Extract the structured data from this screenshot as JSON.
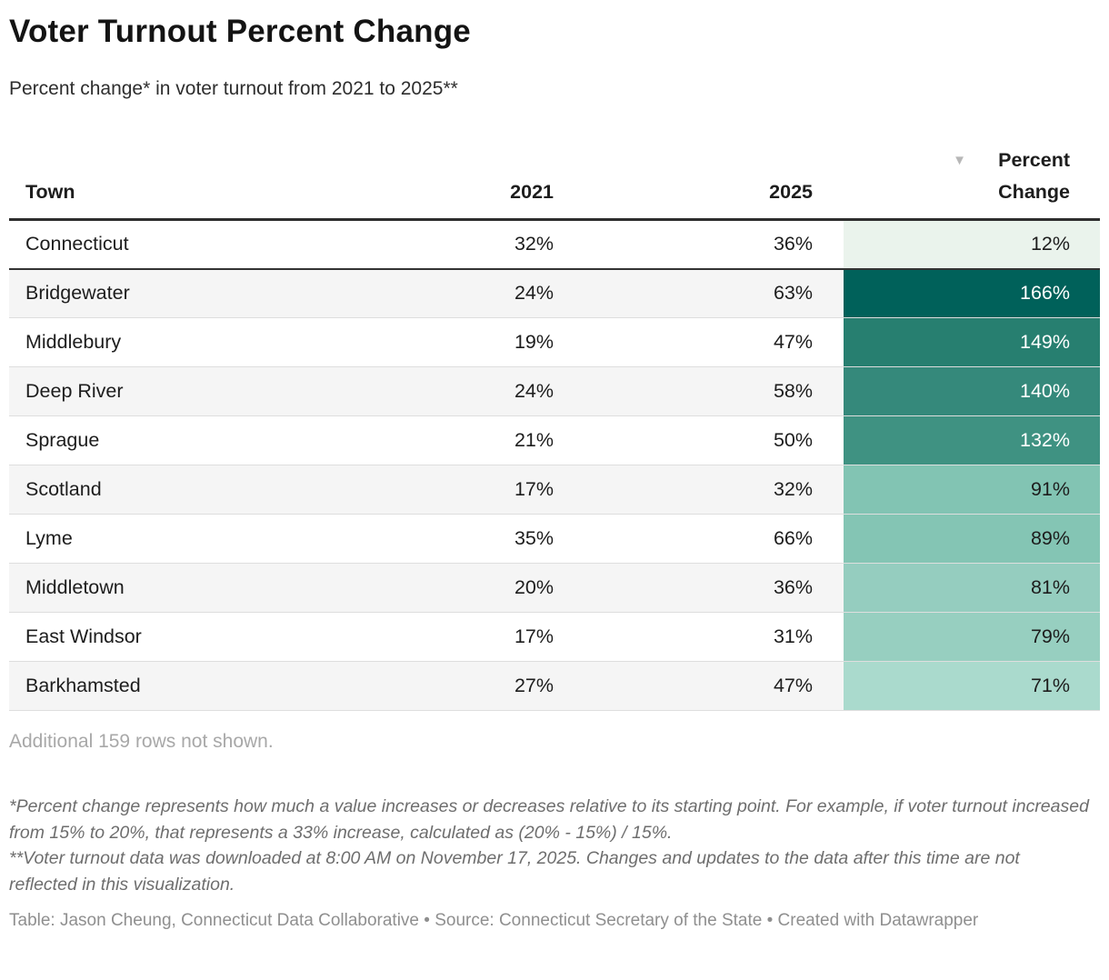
{
  "header": {
    "title": "Voter Turnout Percent Change",
    "subtitle": "Percent change* in voter turnout from 2021 to 2025**"
  },
  "icons": {
    "sort_descending": "▼"
  },
  "chart_data": {
    "type": "table",
    "title": "Voter Turnout Percent Change",
    "subtitle": "Percent change* in voter turnout from 2021 to 2025**",
    "columns": [
      "Town",
      "2021",
      "2025",
      "Percent Change"
    ],
    "sorted_by": "Percent Change",
    "sort_direction": "descending",
    "color_scale": "sequential green (light #eaf3ec low to dark teal #00615a high)",
    "rows": [
      {
        "town": "Connecticut",
        "turnout_2021": "32%",
        "turnout_2025": "36%",
        "percent_change": "12%",
        "change_value": 12,
        "row_bg": "#ffffff",
        "change_cell_bg": "#eaf3ec",
        "change_cell_text": "#1d1d1d",
        "divider_after": true
      },
      {
        "town": "Bridgewater",
        "turnout_2021": "24%",
        "turnout_2025": "63%",
        "percent_change": "166%",
        "change_value": 166,
        "row_bg": "#f5f5f5",
        "change_cell_bg": "#00615a",
        "change_cell_text": "#ffffff",
        "divider_after": false
      },
      {
        "town": "Middlebury",
        "turnout_2021": "19%",
        "turnout_2025": "47%",
        "percent_change": "149%",
        "change_value": 149,
        "row_bg": "#ffffff",
        "change_cell_bg": "#277f70",
        "change_cell_text": "#ffffff",
        "divider_after": false
      },
      {
        "town": "Deep River",
        "turnout_2021": "24%",
        "turnout_2025": "58%",
        "percent_change": "140%",
        "change_value": 140,
        "row_bg": "#f5f5f5",
        "change_cell_bg": "#35897b",
        "change_cell_text": "#ffffff",
        "divider_after": false
      },
      {
        "town": "Sprague",
        "turnout_2021": "21%",
        "turnout_2025": "50%",
        "percent_change": "132%",
        "change_value": 132,
        "row_bg": "#ffffff",
        "change_cell_bg": "#3f9282",
        "change_cell_text": "#ffffff",
        "divider_after": false
      },
      {
        "town": "Scotland",
        "turnout_2021": "17%",
        "turnout_2025": "32%",
        "percent_change": "91%",
        "change_value": 91,
        "row_bg": "#f5f5f5",
        "change_cell_bg": "#82c4b3",
        "change_cell_text": "#1d1d1d",
        "divider_after": false
      },
      {
        "town": "Lyme",
        "turnout_2021": "35%",
        "turnout_2025": "66%",
        "percent_change": "89%",
        "change_value": 89,
        "row_bg": "#ffffff",
        "change_cell_bg": "#84c5b4",
        "change_cell_text": "#1d1d1d",
        "divider_after": false
      },
      {
        "town": "Middletown",
        "turnout_2021": "20%",
        "turnout_2025": "36%",
        "percent_change": "81%",
        "change_value": 81,
        "row_bg": "#f5f5f5",
        "change_cell_bg": "#95cdbf",
        "change_cell_text": "#1d1d1d",
        "divider_after": false
      },
      {
        "town": "East Windsor",
        "turnout_2021": "17%",
        "turnout_2025": "31%",
        "percent_change": "79%",
        "change_value": 79,
        "row_bg": "#ffffff",
        "change_cell_bg": "#97cfc0",
        "change_cell_text": "#1d1d1d",
        "divider_after": false
      },
      {
        "town": "Barkhamsted",
        "turnout_2021": "27%",
        "turnout_2025": "47%",
        "percent_change": "71%",
        "change_value": 71,
        "row_bg": "#f5f5f5",
        "change_cell_bg": "#aadacd",
        "change_cell_text": "#1d1d1d",
        "divider_after": false
      }
    ]
  },
  "footer": {
    "additional_rows_note": "Additional 159 rows not shown.",
    "footnote_1": "*Percent change represents how much a value increases or decreases relative to its starting point. For example, if voter turnout increased from 15% to 20%, that represents a 33% increase, calculated as (20% - 15%) / 15%.",
    "footnote_2": "**Voter turnout data was downloaded at 8:00 AM on November 17, 2025. Changes and updates to the data after this time are not reflected in this visualization.",
    "caption": "Table: Jason Cheung, Connecticut Data Collaborative • Source: Connecticut Secretary of the State • Created with Datawrapper"
  }
}
